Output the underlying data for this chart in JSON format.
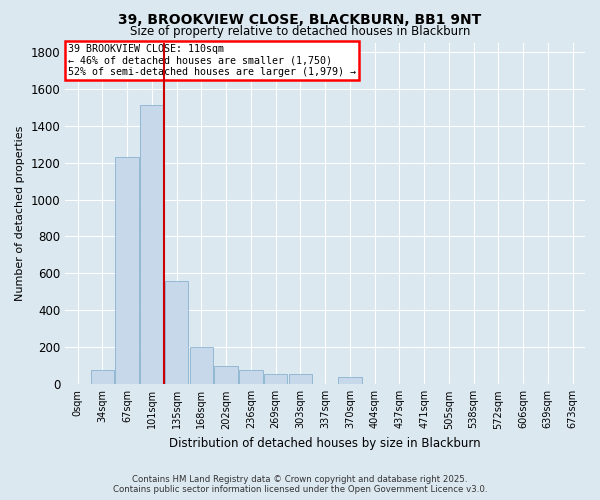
{
  "title": "39, BROOKVIEW CLOSE, BLACKBURN, BB1 9NT",
  "subtitle": "Size of property relative to detached houses in Blackburn",
  "xlabel": "Distribution of detached houses by size in Blackburn",
  "ylabel": "Number of detached properties",
  "bar_color": "#c8d8eb",
  "bar_edge_color": "#7aaac8",
  "background_color": "#dce8f0",
  "fig_background_color": "#dce8f0",
  "grid_color": "#ffffff",
  "annotation_text": "39 BROOKVIEW CLOSE: 110sqm\n← 46% of detached houses are smaller (1,750)\n52% of semi-detached houses are larger (1,979) →",
  "vline_color": "#cc0000",
  "vline_x": 3.5,
  "ylim": [
    0,
    1850
  ],
  "yticks": [
    0,
    200,
    400,
    600,
    800,
    1000,
    1200,
    1400,
    1600,
    1800
  ],
  "categories": [
    "0sqm",
    "34sqm",
    "67sqm",
    "101sqm",
    "135sqm",
    "168sqm",
    "202sqm",
    "236sqm",
    "269sqm",
    "303sqm",
    "337sqm",
    "370sqm",
    "404sqm",
    "437sqm",
    "471sqm",
    "505sqm",
    "538sqm",
    "572sqm",
    "606sqm",
    "639sqm",
    "673sqm"
  ],
  "values": [
    0,
    80,
    1230,
    1510,
    560,
    200,
    100,
    75,
    55,
    55,
    0,
    40,
    0,
    0,
    0,
    0,
    0,
    0,
    0,
    0,
    0
  ],
  "footer_line1": "Contains HM Land Registry data © Crown copyright and database right 2025.",
  "footer_line2": "Contains public sector information licensed under the Open Government Licence v3.0."
}
